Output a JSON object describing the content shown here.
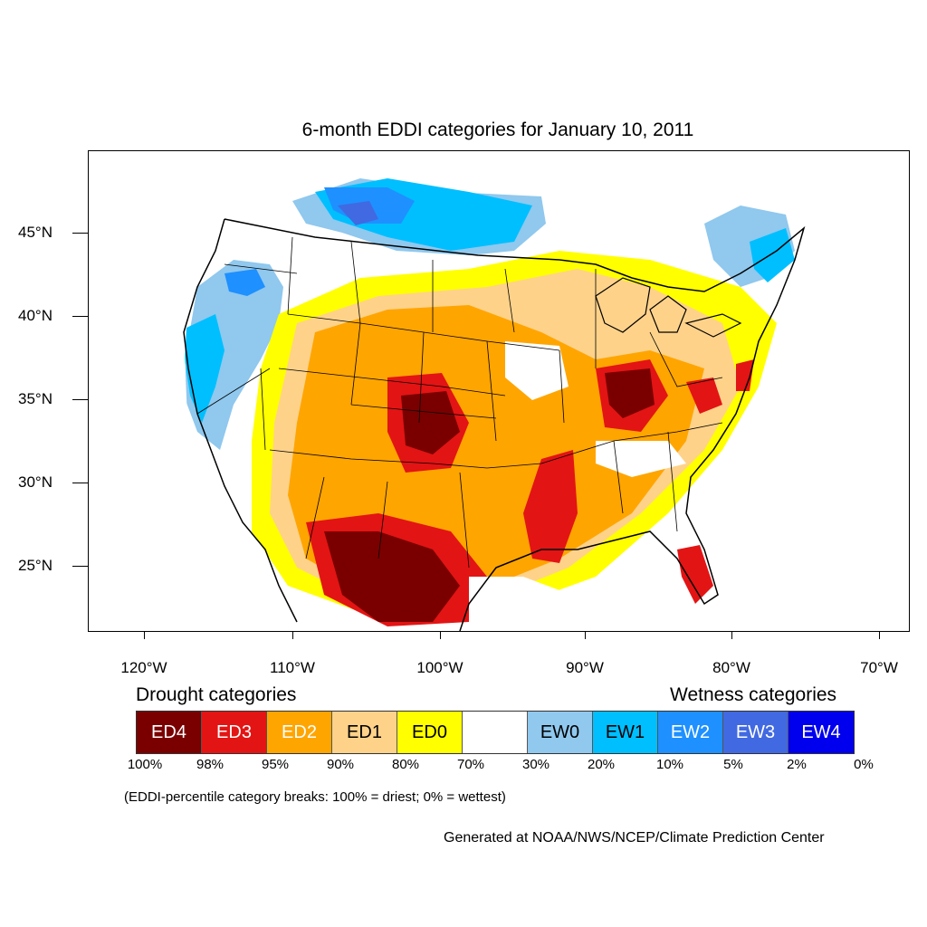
{
  "title": "6-month EDDI categories for January 10, 2011",
  "x_ticks": [
    "120°W",
    "110°W",
    "100°W",
    "90°W",
    "80°W",
    "70°W"
  ],
  "y_ticks": [
    "45°N",
    "40°N",
    "35°N",
    "30°N",
    "25°N"
  ],
  "legend": {
    "drought_heading": "Drought categories",
    "wetness_heading": "Wetness categories",
    "categories": [
      {
        "label": "ED4",
        "color": "#7a0000",
        "text_color": "#ffffff"
      },
      {
        "label": "ED3",
        "color": "#e31414",
        "text_color": "#ffffff"
      },
      {
        "label": "ED2",
        "color": "#ffa500",
        "text_color": "#ffffff"
      },
      {
        "label": "ED1",
        "color": "#ffd28a",
        "text_color": "#000000"
      },
      {
        "label": "ED0",
        "color": "#ffff00",
        "text_color": "#000000"
      },
      {
        "label": "",
        "color": "#ffffff",
        "text_color": "#000000"
      },
      {
        "label": "EW0",
        "color": "#90c8ee",
        "text_color": "#000000"
      },
      {
        "label": "EW1",
        "color": "#00bfff",
        "text_color": "#000000"
      },
      {
        "label": "EW2",
        "color": "#1e90ff",
        "text_color": "#ffffff"
      },
      {
        "label": "EW3",
        "color": "#4169e1",
        "text_color": "#ffffff"
      },
      {
        "label": "EW4",
        "color": "#0000ee",
        "text_color": "#ffffff"
      }
    ],
    "breaks": [
      "100%",
      "98%",
      "95%",
      "90%",
      "80%",
      "70%",
      "30%",
      "20%",
      "10%",
      "5%",
      "2%",
      "0%"
    ]
  },
  "note": "(EDDI-percentile category breaks: 100% = driest; 0% = wettest)",
  "credit": "Generated at NOAA/NWS/NCEP/Climate Prediction Center"
}
